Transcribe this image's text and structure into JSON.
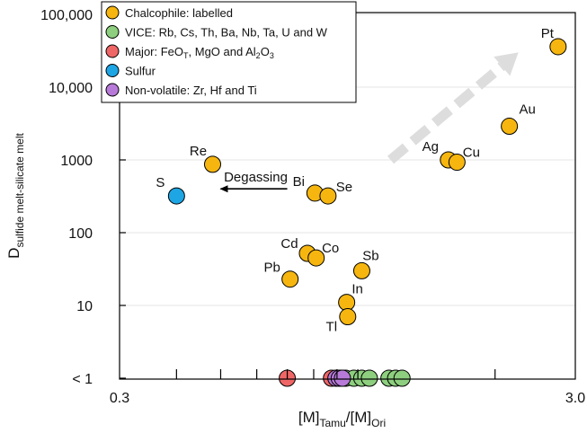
{
  "chart_data": {
    "type": "scatter",
    "xlabel": {
      "main": "[M]",
      "sub1": "Tamu",
      "mid": "/[M]",
      "sub2": "Ori"
    },
    "ylabel": {
      "main": "D",
      "sub": "sulfide melt-silicate melt"
    },
    "x_scale": "log",
    "xlim": [
      0.3,
      3.0
    ],
    "y_scale": "log",
    "ylim_label_values": [
      1,
      100000
    ],
    "x_tick_labels": [
      {
        "value": 0.3,
        "label": "0.3"
      },
      {
        "value": 3.0,
        "label": "3.0"
      }
    ],
    "x_minor_ticks": [
      0.4,
      0.5,
      0.6,
      0.7,
      0.8,
      0.9,
      1.0,
      2.0
    ],
    "y_tick_labels": [
      {
        "value": 1,
        "label": "< 1"
      },
      {
        "value": 10,
        "label": "10"
      },
      {
        "value": 100,
        "label": "100"
      },
      {
        "value": 1000,
        "label": "1000"
      },
      {
        "value": 10000,
        "label": "10,000"
      },
      {
        "value": 100000,
        "label": "100,000"
      }
    ],
    "grid": "horizontal",
    "legend_position": "top-left",
    "series": [
      {
        "name": "Chalcophile: labelled",
        "color": "#f6b60f",
        "points": [
          {
            "label": "Pt",
            "x": 2.75,
            "y": 36000
          },
          {
            "label": "Au",
            "x": 2.15,
            "y": 2900
          },
          {
            "label": "Ag",
            "x": 1.58,
            "y": 1000
          },
          {
            "label": "Cu",
            "x": 1.65,
            "y": 930
          },
          {
            "label": "Re",
            "x": 0.48,
            "y": 870
          },
          {
            "label": "Bi",
            "x": 0.805,
            "y": 350
          },
          {
            "label": "Se",
            "x": 0.86,
            "y": 320
          },
          {
            "label": "Cd",
            "x": 0.775,
            "y": 52
          },
          {
            "label": "Co",
            "x": 0.81,
            "y": 45
          },
          {
            "label": "Sb",
            "x": 1.02,
            "y": 30
          },
          {
            "label": "Pb",
            "x": 0.71,
            "y": 23
          },
          {
            "label": "In",
            "x": 0.945,
            "y": 11
          },
          {
            "label": "Tl",
            "x": 0.95,
            "y": 7
          }
        ]
      },
      {
        "name": "VICE: Rb, Cs, Th, Ba, Nb, Ta, U and W",
        "color": "#8dcf7e",
        "points": [
          {
            "x": 0.9,
            "y": 1
          },
          {
            "x": 0.94,
            "y": 1
          },
          {
            "x": 0.98,
            "y": 1
          },
          {
            "x": 1.02,
            "y": 1
          },
          {
            "x": 1.06,
            "y": 1
          },
          {
            "x": 1.17,
            "y": 1
          },
          {
            "x": 1.21,
            "y": 1
          },
          {
            "x": 1.25,
            "y": 1
          }
        ]
      },
      {
        "name": "Major: FeO_T, MgO and Al2O3",
        "color": "#ef6666",
        "points": [
          {
            "x": 0.7,
            "y": 1
          },
          {
            "x": 0.875,
            "y": 1
          },
          {
            "x": 0.92,
            "y": 1
          }
        ]
      },
      {
        "name": "Sulfur",
        "color": "#1ea5e4",
        "points": [
          {
            "label": "S",
            "x": 0.4,
            "y": 320
          }
        ]
      },
      {
        "name": "Non-volatile: Zr, Hf and Ti",
        "color": "#b77ad8",
        "points": [
          {
            "x": 0.895,
            "y": 1
          },
          {
            "x": 0.91,
            "y": 1
          },
          {
            "x": 0.925,
            "y": 1
          }
        ]
      }
    ],
    "legend": [
      {
        "text": "Chalcophile: labelled"
      },
      {
        "text": "VICE: Rb, Cs, Th, Ba, Nb, Ta, U and W"
      },
      {
        "text": "Major: FeO",
        "sub": "T",
        "text2": ", MgO and Al",
        "sub2": "2",
        "text3": "O",
        "sub3": "3"
      },
      {
        "text": "Sulfur"
      },
      {
        "text": "Non-volatile: Zr, Hf and Ti"
      }
    ],
    "annotations": [
      {
        "type": "arrow",
        "text": "Degassing",
        "from": {
          "x": 0.7,
          "y": 400
        },
        "to": {
          "x": 0.5,
          "y": 400
        },
        "color": "#000000"
      },
      {
        "type": "dashed-arrow",
        "from": {
          "x": 1.18,
          "y": 1000
        },
        "to": {
          "x": 2.25,
          "y": 30000
        },
        "color": "#dddddd"
      }
    ]
  }
}
